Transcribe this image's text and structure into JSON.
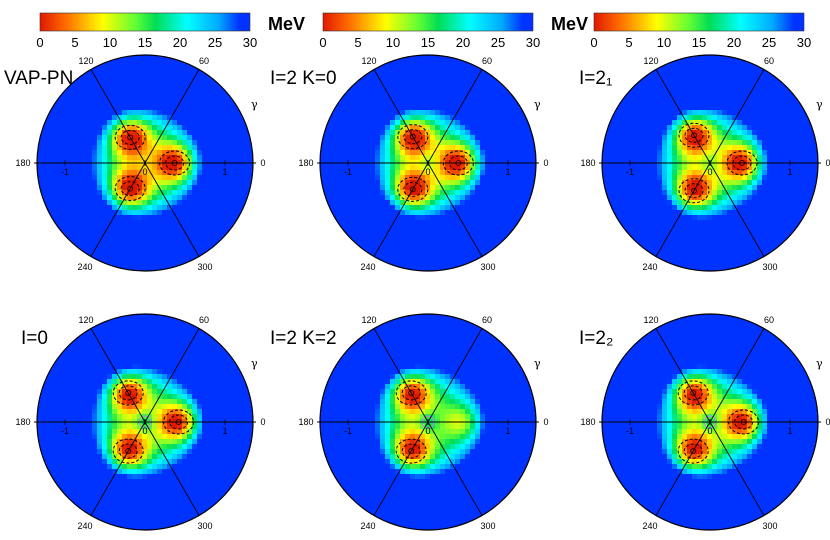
{
  "figure": {
    "unit": "MeV",
    "colorbar": {
      "min": 0,
      "max": 30,
      "ticks": [
        "0",
        "5",
        "10",
        "15",
        "20",
        "25",
        "30"
      ]
    }
  },
  "chart_data": [
    {
      "type": "heatmap",
      "coordinate_system": "polar beta-gamma",
      "title": "VAP-PN",
      "gamma_ticks": [
        "0",
        "60",
        "120",
        "180",
        "240",
        "300"
      ],
      "gamma_symbol": "γ",
      "beta_ticks": [
        "-1",
        "0",
        "1"
      ],
      "color_range_mev": [
        0,
        30
      ],
      "minima": [
        {
          "beta": 0.37,
          "gamma_deg": 0
        },
        {
          "beta": 0.37,
          "gamma_deg": 120
        },
        {
          "beta": 0.37,
          "gamma_deg": 240
        }
      ],
      "center_feature": "none"
    },
    {
      "type": "heatmap",
      "coordinate_system": "polar beta-gamma",
      "title": "I=2 K=0",
      "gamma_ticks": [
        "0",
        "60",
        "120",
        "180",
        "240",
        "300"
      ],
      "gamma_symbol": "γ",
      "beta_ticks": [
        "-1",
        "0",
        "1"
      ],
      "color_range_mev": [
        0,
        30
      ],
      "minima": [
        {
          "beta": 0.38,
          "gamma_deg": 0
        },
        {
          "beta": 0.38,
          "gamma_deg": 120
        },
        {
          "beta": 0.38,
          "gamma_deg": 240
        }
      ],
      "center_feature": "weak"
    },
    {
      "type": "heatmap",
      "coordinate_system": "polar beta-gamma",
      "title": "I=2₁",
      "gamma_ticks": [
        "0",
        "60",
        "120",
        "180",
        "240",
        "300"
      ],
      "gamma_symbol": "γ",
      "beta_ticks": [
        "-1",
        "0",
        "1"
      ],
      "color_range_mev": [
        0,
        30
      ],
      "minima": [
        {
          "beta": 0.4,
          "gamma_deg": 0
        },
        {
          "beta": 0.4,
          "gamma_deg": 120
        },
        {
          "beta": 0.4,
          "gamma_deg": 240
        }
      ],
      "center_feature": "weak"
    },
    {
      "type": "heatmap",
      "coordinate_system": "polar beta-gamma",
      "title": "I=0",
      "gamma_ticks": [
        "0",
        "60",
        "120",
        "180",
        "240",
        "300"
      ],
      "gamma_symbol": "γ",
      "beta_ticks": [
        "-1",
        "0",
        "1"
      ],
      "color_range_mev": [
        0,
        30
      ],
      "minima": [
        {
          "beta": 0.42,
          "gamma_deg": 0
        },
        {
          "beta": 0.42,
          "gamma_deg": 120
        },
        {
          "beta": 0.42,
          "gamma_deg": 240
        }
      ],
      "center_feature": "ring"
    },
    {
      "type": "heatmap",
      "coordinate_system": "polar beta-gamma",
      "title": "I=2 K=2",
      "gamma_ticks": [
        "0",
        "60",
        "120",
        "180",
        "240",
        "300"
      ],
      "gamma_symbol": "γ",
      "beta_ticks": [
        "-1",
        "0",
        "1"
      ],
      "color_range_mev": [
        0,
        30
      ],
      "minima": [
        {
          "beta": 0.42,
          "gamma_deg": 120
        },
        {
          "beta": 0.42,
          "gamma_deg": 240
        }
      ],
      "shallow_region": {
        "beta": 0.45,
        "gamma_deg": 0
      },
      "center_feature": "ring"
    },
    {
      "type": "heatmap",
      "coordinate_system": "polar beta-gamma",
      "title": "I=2₂",
      "gamma_ticks": [
        "0",
        "60",
        "120",
        "180",
        "240",
        "300"
      ],
      "gamma_symbol": "γ",
      "beta_ticks": [
        "-1",
        "0",
        "1"
      ],
      "color_range_mev": [
        0,
        30
      ],
      "minima": [
        {
          "beta": 0.42,
          "gamma_deg": 0
        },
        {
          "beta": 0.42,
          "gamma_deg": 120
        },
        {
          "beta": 0.42,
          "gamma_deg": 240
        }
      ],
      "center_feature": "ring"
    }
  ]
}
